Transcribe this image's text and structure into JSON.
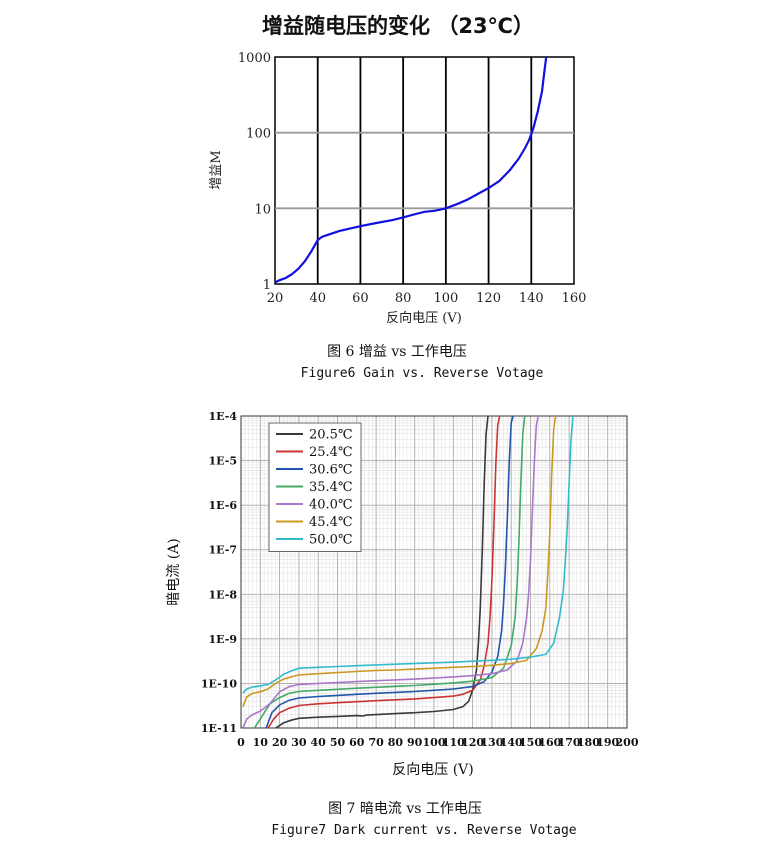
{
  "chart_data": [
    {
      "type": "line",
      "title": "增益随电压的变化 （23℃）",
      "xlabel": "反向电压 (V)",
      "ylabel": "增益M",
      "y_scale": "log",
      "xlim": [
        20,
        160
      ],
      "ylim": [
        1,
        1000
      ],
      "x_ticks": [
        "20",
        "40",
        "60",
        "80",
        "100",
        "120",
        "140",
        "160"
      ],
      "y_ticks": [
        "1",
        "10",
        "100",
        "1000"
      ],
      "grid": true,
      "line_color": "#1010e0",
      "series": [
        {
          "x": [
            20,
            22,
            25,
            28,
            31,
            34,
            37,
            39,
            40,
            42,
            46,
            50,
            55,
            60,
            65,
            70,
            75,
            80,
            85,
            90,
            95,
            100,
            105,
            110,
            115,
            120,
            125,
            130,
            134,
            137,
            139,
            141,
            143,
            145,
            146,
            147
          ],
          "y": [
            1.05,
            1.12,
            1.2,
            1.35,
            1.6,
            2.0,
            2.7,
            3.4,
            3.8,
            4.2,
            4.6,
            5.0,
            5.4,
            5.8,
            6.2,
            6.6,
            7.0,
            7.6,
            8.3,
            9.0,
            9.3,
            10.0,
            11.3,
            13.0,
            15.5,
            18.5,
            23,
            32,
            45,
            62,
            80,
            115,
            190,
            350,
            600,
            1000
          ]
        }
      ]
    },
    {
      "type": "line",
      "xlabel": "反向电压 (V)",
      "ylabel": "暗电流 (A)",
      "y_scale": "log",
      "xlim": [
        0,
        200
      ],
      "ylim": [
        1e-11,
        0.0001
      ],
      "x_ticks": [
        "0",
        "10",
        "20",
        "30",
        "40",
        "50",
        "60",
        "70",
        "80",
        "90",
        "100",
        "110",
        "120",
        "130",
        "140",
        "150",
        "160",
        "170",
        "180",
        "190",
        "200"
      ],
      "y_ticks": [
        "1E-11",
        "1E-10",
        "1E-9",
        "1E-8",
        "1E-7",
        "1E-6",
        "1E-5",
        "1E-4"
      ],
      "grid": true,
      "legend": "top-left",
      "series": [
        {
          "name": "20.5℃",
          "color": "#3a3a3a",
          "x": [
            18,
            22,
            26,
            30,
            40,
            50,
            60,
            63,
            65,
            70,
            80,
            90,
            100,
            110,
            115,
            118,
            120,
            122,
            123,
            124,
            125,
            126,
            127,
            128
          ],
          "y": [
            1e-11,
            1.3e-11,
            1.5e-11,
            1.65e-11,
            1.75e-11,
            1.82e-11,
            1.9e-11,
            1.85e-11,
            1.95e-11,
            2e-11,
            2.1e-11,
            2.2e-11,
            2.35e-11,
            2.6e-11,
            3e-11,
            4e-11,
            7e-11,
            2e-10,
            8e-10,
            5e-09,
            1e-07,
            3e-06,
            4e-05,
            0.0001
          ]
        },
        {
          "name": "25.4℃",
          "color": "#cc3333",
          "x": [
            14,
            17,
            20,
            25,
            30,
            40,
            50,
            60,
            70,
            80,
            90,
            100,
            110,
            115,
            120,
            124,
            126,
            128,
            129,
            130,
            131,
            132,
            133,
            134
          ],
          "y": [
            1e-11,
            1.6e-11,
            2.2e-11,
            2.8e-11,
            3.2e-11,
            3.5e-11,
            3.7e-11,
            3.9e-11,
            4.1e-11,
            4.3e-11,
            4.5e-11,
            4.8e-11,
            5.2e-11,
            5.7e-11,
            7e-11,
            1.2e-10,
            2.5e-10,
            8e-10,
            3e-09,
            2e-08,
            3e-07,
            8e-06,
            6e-05,
            0.0001
          ]
        },
        {
          "name": "30.6℃",
          "color": "#2255aa",
          "x": [
            13,
            16,
            20,
            25,
            30,
            40,
            50,
            60,
            70,
            80,
            90,
            100,
            110,
            120,
            126,
            130,
            133,
            135,
            136,
            137,
            138,
            139,
            140,
            141
          ],
          "y": [
            1e-11,
            2.2e-11,
            3.3e-11,
            4.2e-11,
            4.7e-11,
            5.1e-11,
            5.4e-11,
            5.7e-11,
            6e-11,
            6.3e-11,
            6.6e-11,
            7e-11,
            7.5e-11,
            8.5e-11,
            1.1e-10,
            1.8e-10,
            4e-10,
            1.5e-09,
            6e-09,
            4e-08,
            5e-07,
            1e-05,
            7e-05,
            0.0001
          ]
        },
        {
          "name": "35.4℃",
          "color": "#44aa66",
          "x": [
            7,
            10,
            15,
            20,
            25,
            30,
            40,
            50,
            60,
            70,
            80,
            90,
            100,
            110,
            120,
            130,
            136,
            140,
            142,
            143,
            144,
            145,
            146,
            147
          ],
          "y": [
            1e-11,
            1.6e-11,
            3.5e-11,
            4.8e-11,
            6e-11,
            6.6e-11,
            7e-11,
            7.4e-11,
            7.8e-11,
            8.2e-11,
            8.6e-11,
            9e-11,
            9.6e-11,
            1.03e-10,
            1.12e-10,
            1.35e-10,
            2.2e-10,
            7e-10,
            3e-09,
            1.5e-08,
            1.5e-07,
            3e-06,
            4e-05,
            0.0001
          ]
        },
        {
          "name": "40.0℃",
          "color": "#aa77cc",
          "x": [
            1,
            3,
            6,
            10,
            15,
            20,
            25,
            30,
            40,
            50,
            60,
            70,
            80,
            90,
            100,
            110,
            120,
            130,
            138,
            143,
            146,
            148,
            149,
            150,
            151,
            152,
            153,
            154
          ],
          "y": [
            1e-11,
            1.6e-11,
            2e-11,
            2.4e-11,
            3.5e-11,
            6.5e-11,
            8.5e-11,
            9.5e-11,
            1e-10,
            1.05e-10,
            1.1e-10,
            1.15e-10,
            1.2e-10,
            1.25e-10,
            1.32e-10,
            1.4e-10,
            1.5e-10,
            1.65e-10,
            2e-10,
            3.2e-10,
            8e-10,
            3e-09,
            1e-08,
            6e-08,
            8e-07,
            1e-05,
            6e-05,
            0.0001
          ]
        },
        {
          "name": "45.4℃",
          "color": "#cc9922",
          "x": [
            1,
            3,
            6,
            10,
            14,
            18,
            22,
            26,
            30,
            40,
            50,
            60,
            70,
            80,
            90,
            100,
            110,
            120,
            130,
            140,
            148,
            153,
            156,
            158,
            159,
            160,
            161,
            162,
            163
          ],
          "y": [
            3e-11,
            5e-11,
            6e-11,
            6.5e-11,
            7.5e-11,
            1e-10,
            1.25e-10,
            1.4e-10,
            1.55e-10,
            1.65e-10,
            1.75e-10,
            1.85e-10,
            1.95e-10,
            2e-10,
            2.1e-10,
            2.2e-10,
            2.3e-10,
            2.4e-10,
            2.55e-10,
            2.8e-10,
            3.3e-10,
            6e-10,
            1.5e-09,
            5e-09,
            3e-08,
            2.5e-07,
            5e-06,
            5e-05,
            0.0001
          ]
        },
        {
          "name": "50.0℃",
          "color": "#33bbcc",
          "x": [
            1,
            3,
            6,
            10,
            14,
            18,
            22,
            26,
            30,
            40,
            50,
            60,
            70,
            80,
            90,
            100,
            110,
            120,
            130,
            140,
            150,
            158,
            162,
            165,
            167,
            168,
            169,
            170,
            171,
            172
          ],
          "y": [
            6e-11,
            7.5e-11,
            8.3e-11,
            8.8e-11,
            9.5e-11,
            1.2e-10,
            1.6e-10,
            1.9e-10,
            2.2e-10,
            2.3e-10,
            2.4e-10,
            2.5e-10,
            2.6e-10,
            2.7e-10,
            2.8e-10,
            2.9e-10,
            3e-10,
            3.15e-10,
            3.3e-10,
            3.5e-10,
            3.9e-10,
            4.5e-10,
            8e-10,
            3e-09,
            1.2e-08,
            5e-08,
            3e-07,
            3e-06,
            3e-05,
            0.0001
          ]
        }
      ]
    }
  ],
  "captions": {
    "fig6_cn": "图 6 增益 vs 工作电压",
    "fig6_en": "Figure6  Gain vs. Reverse Votage",
    "fig7_cn": "图 7 暗电流 vs 工作电压",
    "fig7_en": "Figure7  Dark current vs. Reverse Votage"
  }
}
